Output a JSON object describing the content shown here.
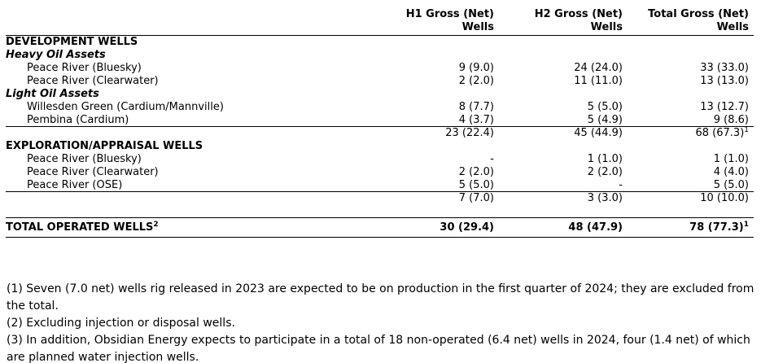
{
  "table": {
    "columns": [
      {
        "line1": "H1 Gross (Net)",
        "line2": "Wells"
      },
      {
        "line1": "H2 Gross (Net)",
        "line2": "Wells"
      },
      {
        "line1": "Total Gross (Net)",
        "line2": "Wells"
      }
    ],
    "rows": [
      {
        "type": "section",
        "label": "DEVELOPMENT WELLS"
      },
      {
        "type": "subsection",
        "label": "Heavy Oil Assets"
      },
      {
        "type": "well",
        "label": "Peace River (Bluesky)",
        "h1": "9 (9.0)",
        "h2": "24 (24.0)",
        "total": "33 (33.0)"
      },
      {
        "type": "well",
        "label": "Peace River (Clearwater)",
        "h1": "2 (2.0)",
        "h2": "11 (11.0)",
        "total": "13 (13.0)"
      },
      {
        "type": "subsection",
        "label": "Light Oil Assets"
      },
      {
        "type": "well",
        "label": "Willesden Green (Cardium/Mannville)",
        "h1": "8 (7.7)",
        "h2": "5 (5.0)",
        "total": "13 (12.7)"
      },
      {
        "type": "well",
        "label": "Pembina (Cardium)",
        "h1": "4 (3.7)",
        "h2": "5 (4.9)",
        "total": "9 (8.6)"
      },
      {
        "type": "subtotal",
        "label": "",
        "h1": "23 (22.4)",
        "h2": "45 (44.9)",
        "total": "68 (67.3)",
        "total_sup": "1"
      },
      {
        "type": "section",
        "label": "EXPLORATION/APPRAISAL WELLS"
      },
      {
        "type": "well",
        "label": "Peace River (Bluesky)",
        "h1": "-",
        "h2": "1 (1.0)",
        "total": "1 (1.0)"
      },
      {
        "type": "well",
        "label": "Peace River (Clearwater)",
        "h1": "2 (2.0)",
        "h2": "2 (2.0)",
        "total": "4 (4.0)"
      },
      {
        "type": "well",
        "label": "Peace River (OSE)",
        "h1": "5 (5.0)",
        "h2": "-",
        "total": "5 (5.0)"
      },
      {
        "type": "subtotal",
        "label": "",
        "h1": "7 (7.0)",
        "h2": "3 (3.0)",
        "total": "10 (10.0)"
      }
    ],
    "total_row": {
      "label": "TOTAL OPERATED WELLS",
      "label_sup": "2",
      "h1": "30 (29.4)",
      "h2": "48 (47.9)",
      "total": "78 (77.3)",
      "total_sup": "1"
    }
  },
  "footnotes": [
    "(1) Seven (7.0 net) wells rig released in 2023 are expected to be on production in the first quarter of 2024; they are excluded from the total.",
    "(2) Excluding injection or disposal wells.",
    "(3) In addition, Obsidian Energy expects to participate in a total of 18 non-operated (6.4 net) wells in 2024, four (1.4 net) of which are planned water injection wells."
  ]
}
